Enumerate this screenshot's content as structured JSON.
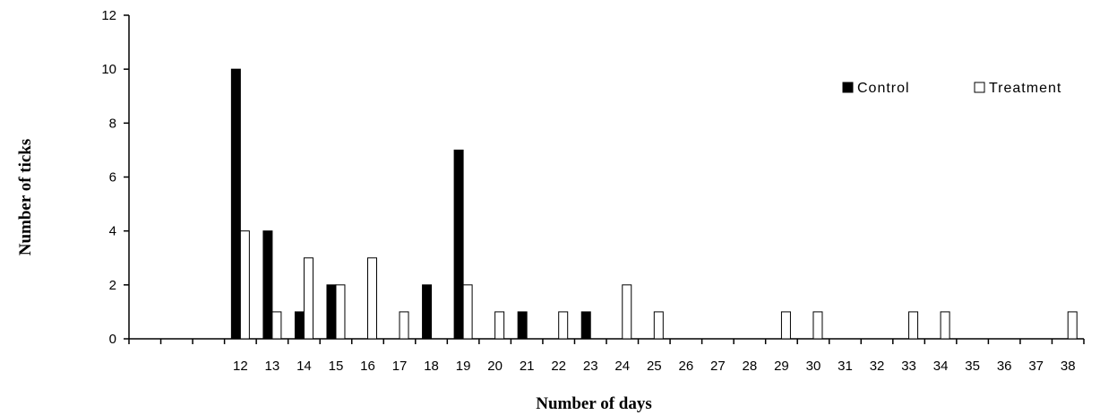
{
  "chart_data": {
    "type": "bar",
    "title": "",
    "xlabel": "Number of days",
    "ylabel": "Number of ticks",
    "ylim": [
      0,
      12
    ],
    "yticks": [
      0,
      2,
      4,
      6,
      8,
      10,
      12
    ],
    "categories": [
      "",
      "",
      "",
      "12",
      "13",
      "14",
      "15",
      "16",
      "17",
      "18",
      "19",
      "20",
      "21",
      "22",
      "23",
      "24",
      "25",
      "26",
      "27",
      "28",
      "29",
      "30",
      "31",
      "32",
      "33",
      "34",
      "35",
      "36",
      "37",
      "38"
    ],
    "series": [
      {
        "name": "Control",
        "color": "#000000",
        "values": [
          0,
          0,
          0,
          10,
          4,
          1,
          2,
          0,
          0,
          2,
          7,
          0,
          1,
          0,
          1,
          0,
          0,
          0,
          0,
          0,
          0,
          0,
          0,
          0,
          0,
          0,
          0,
          0,
          0,
          0
        ]
      },
      {
        "name": "Treatment",
        "color": "#ffffff",
        "values": [
          0,
          0,
          0,
          4,
          1,
          3,
          2,
          3,
          1,
          0,
          2,
          1,
          0,
          1,
          0,
          2,
          1,
          0,
          0,
          0,
          1,
          1,
          0,
          0,
          1,
          1,
          0,
          0,
          0,
          1
        ]
      }
    ],
    "legend": "top-right",
    "grid": false
  }
}
